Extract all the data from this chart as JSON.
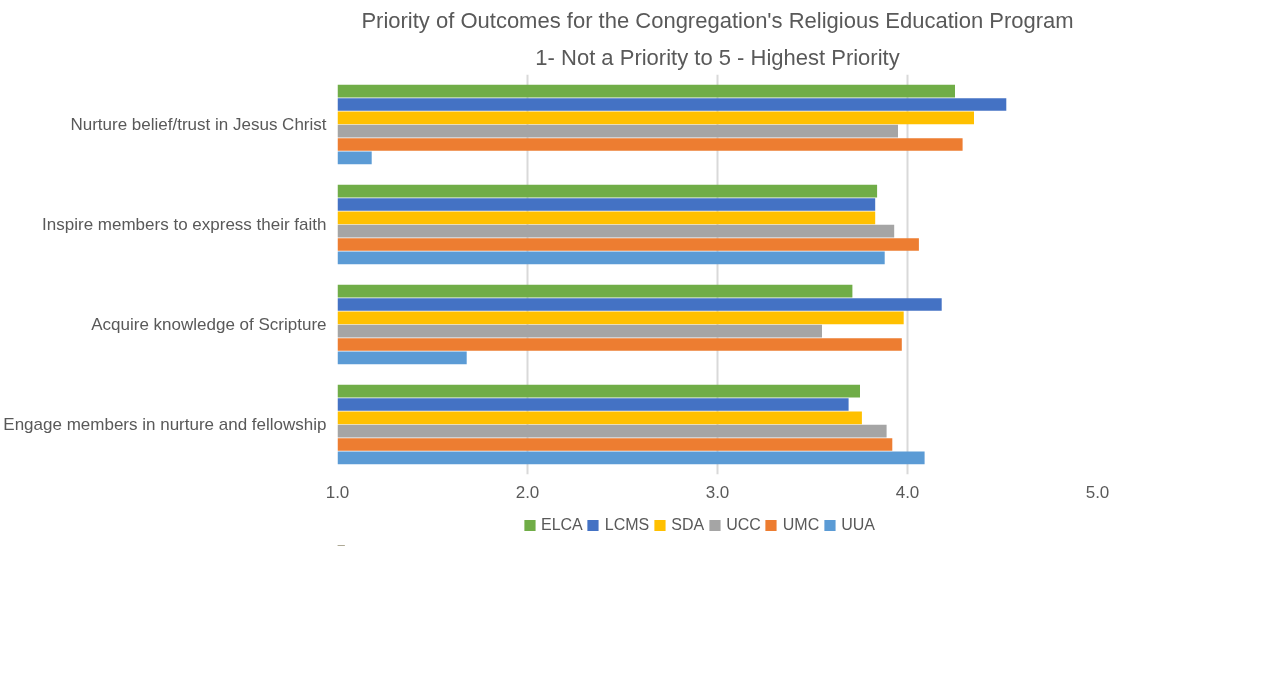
{
  "chart_data": {
    "type": "bar",
    "orientation": "horizontal",
    "title": "Priority of Outcomes for the Congregation's Religious Education Program",
    "subtitle": "1- Not a Priority to 5 - Highest Priority",
    "categories": [
      "Nurture belief/trust in Jesus Christ",
      "Inspire members to express their faith",
      "Acquire knowledge of Scripture",
      "Engage members in nurture and fellowship"
    ],
    "series": [
      {
        "name": "ELCA",
        "color": "#70ad47",
        "values": [
          4.25,
          3.84,
          3.71,
          3.75
        ]
      },
      {
        "name": "LCMS",
        "color": "#4472c4",
        "values": [
          4.52,
          3.83,
          4.18,
          3.69
        ]
      },
      {
        "name": "SDA",
        "color": "#ffc000",
        "values": [
          4.35,
          3.83,
          3.98,
          3.76
        ]
      },
      {
        "name": "UCC",
        "color": "#a5a5a5",
        "values": [
          3.95,
          3.93,
          3.55,
          3.89
        ]
      },
      {
        "name": "UMC",
        "color": "#ed7d31",
        "values": [
          4.29,
          4.06,
          3.97,
          3.92
        ]
      },
      {
        "name": "UUA",
        "color": "#5b9bd5",
        "values": [
          1.18,
          3.88,
          1.68,
          4.09
        ]
      }
    ],
    "xlim": [
      1,
      5
    ],
    "xticks": [
      {
        "value": 1,
        "label": "1.0"
      },
      {
        "value": 2,
        "label": "2.0"
      },
      {
        "value": 3,
        "label": "3.0"
      },
      {
        "value": 4,
        "label": "4.0"
      },
      {
        "value": 5,
        "label": "5.0"
      }
    ],
    "grid": "x",
    "legend": "bottom"
  }
}
